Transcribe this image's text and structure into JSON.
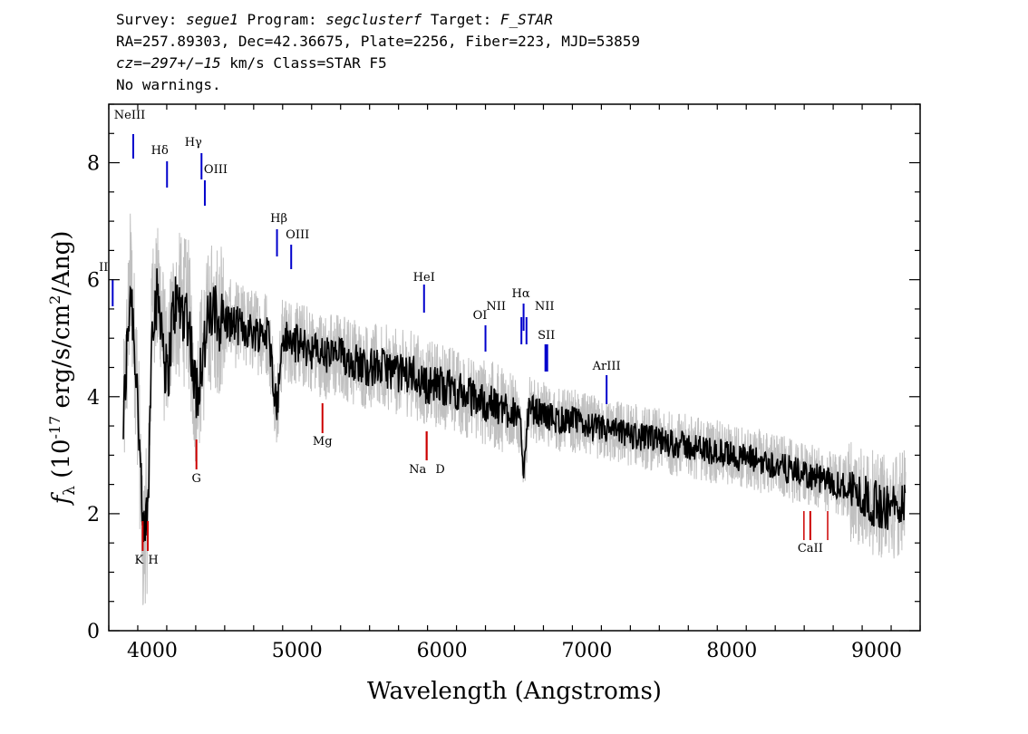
{
  "header": {
    "survey_label": "Survey:",
    "survey": "segue1",
    "program_label": "Program:",
    "program": "segclusterf",
    "target_label": "Target:",
    "target": "F_STAR",
    "line2": "RA=257.89303, Dec=42.36675, Plate=2256, Fiber=223, MJD=53859",
    "cz_label": "cz=",
    "cz_value": "−297+/−15",
    "cz_unit_class": "km/s Class=STAR F5",
    "warnings": "No warnings."
  },
  "chart_data": {
    "type": "line",
    "xlabel": "Wavelength (Angstroms)",
    "ylabel": "f_λ (10^-17 erg/s/cm^2/Ang)",
    "xlim": [
      3700,
      9300
    ],
    "ylim": [
      0,
      9
    ],
    "xticks": [
      "4000",
      "5000",
      "6000",
      "7000",
      "8000",
      "9000"
    ],
    "yticks": [
      "0",
      "2",
      "4",
      "6",
      "8"
    ],
    "grid": false,
    "series": [
      {
        "style": "spectrum (black, smoothed) over raw flux (gray)",
        "color": "#000000",
        "error_color": "#c0c0c0",
        "x": [
          3800,
          3850,
          3900,
          3935,
          3970,
          4000,
          4050,
          4102,
          4150,
          4200,
          4250,
          4300,
          4340,
          4400,
          4500,
          4600,
          4700,
          4800,
          4861,
          4900,
          5000,
          5100,
          5200,
          5300,
          5400,
          5500,
          5600,
          5700,
          5800,
          5890,
          5950,
          6000,
          6100,
          6200,
          6300,
          6400,
          6500,
          6540,
          6563,
          6600,
          6700,
          6800,
          6900,
          7000,
          7200,
          7400,
          7600,
          7800,
          8000,
          8200,
          8400,
          8600,
          8800,
          8900,
          9000,
          9100,
          9200
        ],
        "y": [
          3.5,
          6.0,
          4.0,
          1.5,
          2.0,
          5.5,
          5.7,
          4.2,
          5.6,
          5.5,
          5.4,
          4.0,
          4.6,
          5.4,
          5.3,
          5.2,
          5.1,
          5.1,
          3.8,
          5.0,
          4.9,
          4.8,
          4.7,
          4.7,
          4.6,
          4.5,
          4.5,
          4.4,
          4.4,
          4.2,
          4.2,
          4.2,
          4.1,
          4.0,
          3.9,
          3.8,
          3.8,
          3.5,
          2.8,
          3.8,
          3.7,
          3.6,
          3.6,
          3.5,
          3.4,
          3.3,
          3.2,
          3.1,
          3.0,
          2.9,
          2.75,
          2.6,
          2.45,
          2.3,
          2.15,
          2.1,
          2.25
        ]
      }
    ],
    "emission_lines": [
      {
        "label": "NeIII",
        "x": 3869,
        "color": "#0000cc"
      },
      {
        "label": "II",
        "x": 3727,
        "color": "#0000cc"
      },
      {
        "label": "Hδ",
        "x": 4102,
        "color": "#0000cc"
      },
      {
        "label": "Hγ",
        "x": 4340,
        "color": "#0000cc"
      },
      {
        "label": "OIII",
        "x": 4363,
        "color": "#0000cc"
      },
      {
        "label": "Hβ",
        "x": 4861,
        "color": "#0000cc"
      },
      {
        "label": "OIII",
        "x": 4959,
        "color": "#0000cc"
      },
      {
        "label": "HeI",
        "x": 5876,
        "color": "#0000cc"
      },
      {
        "label": "OI",
        "x": 6300,
        "color": "#0000cc"
      },
      {
        "label": "NII",
        "x": 6548,
        "color": "#0000cc"
      },
      {
        "label": "Hα",
        "x": 6563,
        "color": "#0000cc"
      },
      {
        "label": "NII",
        "x": 6583,
        "color": "#0000cc"
      },
      {
        "label": "SII",
        "x": 6720,
        "color": "#0000cc"
      },
      {
        "label": "ArIII",
        "x": 7136,
        "color": "#0000cc"
      }
    ],
    "absorption_lines": [
      {
        "label": "K",
        "x": 3934,
        "color": "#cc0000"
      },
      {
        "label": "H",
        "x": 3969,
        "color": "#cc0000"
      },
      {
        "label": "G",
        "x": 4305,
        "color": "#cc0000"
      },
      {
        "label": "Mg",
        "x": 5175,
        "color": "#cc0000"
      },
      {
        "label": "Na",
        "x": 5894,
        "color": "#cc0000"
      },
      {
        "label": "D",
        "x": 5894,
        "color": "#cc0000"
      },
      {
        "label": "CaII",
        "x": 8542,
        "color": "#cc0000"
      }
    ]
  }
}
